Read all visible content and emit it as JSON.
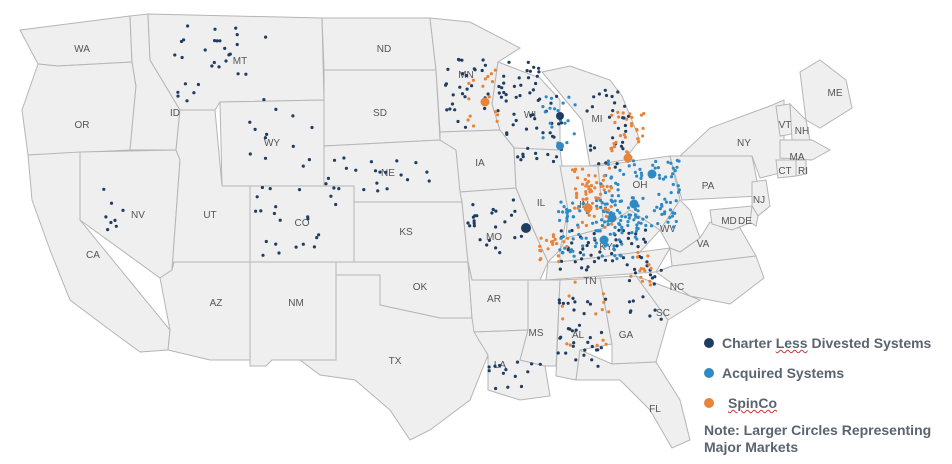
{
  "colors": {
    "charter": "#1f3d63",
    "acquired": "#2f8ac4",
    "spinco": "#e8843a",
    "state_fill": "#efefef",
    "state_border": "#b5b5b5"
  },
  "states": [
    "WA",
    "OR",
    "CA",
    "ID",
    "NV",
    "MT",
    "WY",
    "UT",
    "AZ",
    "CO",
    "NM",
    "ND",
    "SD",
    "NE",
    "KS",
    "OK",
    "TX",
    "MN",
    "IA",
    "MO",
    "AR",
    "LA",
    "WI",
    "IL",
    "MS",
    "MI",
    "IN",
    "KY",
    "TN",
    "AL",
    "GA",
    "FL",
    "OH",
    "WV",
    "VA",
    "NC",
    "SC",
    "PA",
    "NY",
    "ME",
    "VT",
    "NH",
    "MA",
    "CT",
    "RI",
    "NJ",
    "MD",
    "DE"
  ],
  "legend": {
    "charter_prefix": "Charter ",
    "charter_less": "Less",
    "charter_suffix": " Divested Systems",
    "acquired": "Acquired Systems",
    "spinco": "SpinCo",
    "note_line1": "Note: Larger Circles Representing",
    "note_line2": "Major Markets"
  }
}
